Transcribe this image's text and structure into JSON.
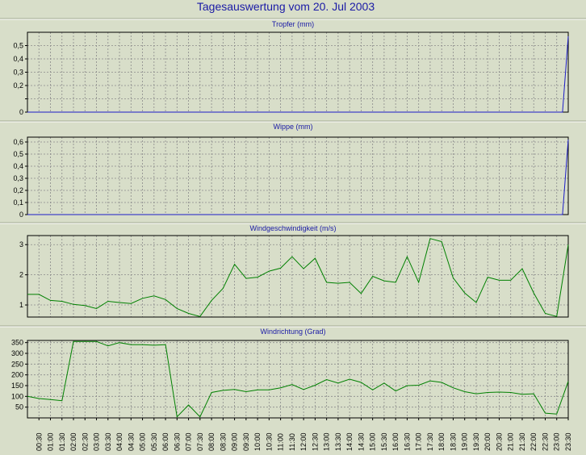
{
  "title": "Tagesauswertung vom 20. Jul 2003",
  "chart_data": [
    {
      "type": "line",
      "title": "Tropfer (mm)",
      "color": "#1c1cc8",
      "ylim": [
        0,
        0.6
      ],
      "yticks": [
        0,
        0.1,
        0.2,
        0.3,
        0.4,
        0.5
      ],
      "ytick_labels": [
        "0",
        "",
        "0,2",
        "0,3",
        "0,4",
        "0,5"
      ],
      "series": [
        {
          "x": [
            0,
            46.5,
            47
          ],
          "values": [
            0,
            0,
            0.57
          ]
        }
      ],
      "grid": true
    },
    {
      "type": "line",
      "title": "Wippe (mm)",
      "color": "#1c1cc8",
      "ylim": [
        0,
        0.64
      ],
      "yticks": [
        0,
        0.1,
        0.2,
        0.3,
        0.4,
        0.5,
        0.6
      ],
      "ytick_labels": [
        "0",
        "0,1",
        "0,2",
        "0,3",
        "0,4",
        "0,5",
        "0,6"
      ],
      "series": [
        {
          "x": [
            0,
            46.5,
            47
          ],
          "values": [
            0,
            0,
            0.62
          ]
        }
      ],
      "grid": true
    },
    {
      "type": "line",
      "title": "Windgeschwindigkeit (m/s)",
      "color": "#008000",
      "ylim": [
        0.6,
        3.3
      ],
      "yticks": [
        1,
        2,
        3
      ],
      "ytick_labels": [
        "1",
        "2",
        "3"
      ],
      "series": [
        {
          "x": [
            0,
            1,
            2,
            3,
            4,
            5,
            6,
            7,
            8,
            9,
            10,
            11,
            12,
            13,
            14,
            15,
            16,
            17,
            18,
            19,
            20,
            21,
            22,
            23,
            24,
            25,
            26,
            27,
            28,
            29,
            30,
            31,
            32,
            33,
            34,
            35,
            36,
            37,
            38,
            39,
            40,
            41,
            42,
            43,
            44,
            45,
            46,
            47
          ],
          "values": [
            1.35,
            1.35,
            1.15,
            1.12,
            1.02,
            0.98,
            0.88,
            1.12,
            1.08,
            1.05,
            1.22,
            1.3,
            1.18,
            0.88,
            0.72,
            0.62,
            1.15,
            1.55,
            2.35,
            1.88,
            1.92,
            2.12,
            2.22,
            2.6,
            2.2,
            2.55,
            1.75,
            1.72,
            1.75,
            1.38,
            1.95,
            1.8,
            1.75,
            2.6,
            1.75,
            3.2,
            3.1,
            1.9,
            1.4,
            1.08,
            1.92,
            1.82,
            1.82,
            2.2,
            1.4,
            0.72,
            0.62,
            3.0
          ]
        }
      ],
      "grid": true
    },
    {
      "type": "line",
      "title": "Windrichtung (Grad)",
      "color": "#008000",
      "ylim": [
        0,
        360
      ],
      "yticks": [
        50,
        100,
        150,
        200,
        250,
        300,
        350
      ],
      "ytick_labels": [
        "50",
        "100",
        "150",
        "200",
        "250",
        "300",
        "350"
      ],
      "series": [
        {
          "x": [
            0,
            1,
            2,
            3,
            4,
            5,
            6,
            7,
            8,
            9,
            10,
            11,
            12,
            13,
            14,
            15,
            16,
            17,
            18,
            19,
            20,
            21,
            22,
            23,
            24,
            25,
            26,
            27,
            28,
            29,
            30,
            31,
            32,
            33,
            34,
            35,
            36,
            37,
            38,
            39,
            40,
            41,
            42,
            43,
            44,
            45,
            46,
            47
          ],
          "values": [
            100,
            90,
            85,
            80,
            355,
            355,
            355,
            335,
            350,
            340,
            340,
            338,
            340,
            5,
            60,
            5,
            118,
            128,
            132,
            122,
            130,
            130,
            140,
            155,
            132,
            152,
            178,
            162,
            180,
            165,
            130,
            162,
            125,
            150,
            152,
            172,
            165,
            140,
            122,
            112,
            118,
            120,
            118,
            110,
            112,
            22,
            18,
            170
          ]
        }
      ],
      "grid": true
    }
  ],
  "x_labels": [
    "00:30",
    "01:00",
    "01:30",
    "02:00",
    "02:30",
    "03:00",
    "03:30",
    "04:00",
    "04:30",
    "05:00",
    "05:30",
    "06:00",
    "06:30",
    "07:00",
    "07:30",
    "08:00",
    "08:30",
    "09:00",
    "09:30",
    "10:00",
    "10:30",
    "11:00",
    "11:30",
    "12:00",
    "12:30",
    "13:00",
    "13:30",
    "14:00",
    "14:30",
    "15:00",
    "15:30",
    "16:00",
    "16:30",
    "17:00",
    "17:30",
    "18:00",
    "18:30",
    "19:00",
    "19:30",
    "20:00",
    "20:30",
    "21:00",
    "21:30",
    "22:00",
    "22:30",
    "23:00",
    "23:30"
  ]
}
